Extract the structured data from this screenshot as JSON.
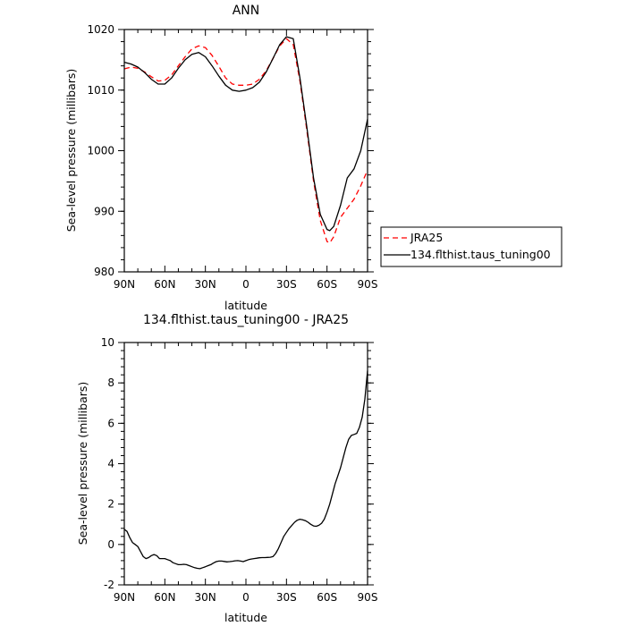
{
  "chart_data": [
    {
      "type": "line",
      "title": "ANN",
      "xlabel": "latitude",
      "ylabel": "Sea-level pressure (millibars)",
      "x_direction": "90N to 90S",
      "x_ticks": [
        "90N",
        "60N",
        "30N",
        "0",
        "30S",
        "60S",
        "90S"
      ],
      "ylim": [
        980,
        1020
      ],
      "y_ticks": [
        "980",
        "990",
        "1000",
        "1010",
        "1020"
      ],
      "legend_position": "right",
      "series": [
        {
          "name": "JRA25",
          "color": "#ff0000",
          "dash": "dashed",
          "x": [
            90,
            85,
            80,
            75,
            70,
            65,
            60,
            55,
            50,
            45,
            40,
            35,
            30,
            25,
            20,
            15,
            10,
            5,
            0,
            -5,
            -10,
            -15,
            -20,
            -25,
            -30,
            -35,
            -40,
            -45,
            -50,
            -55,
            -60,
            -62,
            -65,
            -70,
            -75,
            -80,
            -85,
            -90
          ],
          "values": [
            1013.5,
            1013.8,
            1013.6,
            1013.0,
            1012.2,
            1011.5,
            1011.6,
            1012.5,
            1014.0,
            1015.5,
            1016.8,
            1017.3,
            1017.0,
            1015.7,
            1013.9,
            1012.0,
            1011.0,
            1010.8,
            1010.8,
            1011.0,
            1011.8,
            1013.2,
            1015.2,
            1017.3,
            1018.5,
            1017.5,
            1011.5,
            1003.5,
            995.0,
            988.5,
            985.0,
            984.8,
            985.8,
            989.0,
            990.5,
            992.0,
            994.2,
            996.8
          ]
        },
        {
          "name": "134.flthist.taus_tuning00",
          "color": "#000000",
          "dash": "solid",
          "x": [
            90,
            85,
            80,
            75,
            70,
            65,
            60,
            55,
            50,
            45,
            40,
            35,
            30,
            25,
            20,
            15,
            10,
            5,
            0,
            -5,
            -10,
            -15,
            -20,
            -25,
            -30,
            -35,
            -40,
            -45,
            -50,
            -55,
            -60,
            -62,
            -65,
            -70,
            -75,
            -80,
            -85,
            -90
          ],
          "values": [
            1014.6,
            1014.3,
            1013.8,
            1012.9,
            1011.8,
            1011.0,
            1011.0,
            1012.0,
            1013.6,
            1015.0,
            1015.9,
            1016.2,
            1015.5,
            1014.0,
            1012.3,
            1010.8,
            1010.0,
            1009.8,
            1010.0,
            1010.4,
            1011.3,
            1013.0,
            1015.2,
            1017.5,
            1018.8,
            1018.5,
            1012.0,
            1004.0,
            995.5,
            989.5,
            987.0,
            986.8,
            987.5,
            991.0,
            995.5,
            997.0,
            1000.0,
            1005.2
          ]
        }
      ]
    },
    {
      "type": "line",
      "title": "134.flthist.taus_tuning00 - JRA25",
      "xlabel": "latitude",
      "ylabel": "Sea-level pressure (millibars)",
      "x_direction": "90N to 90S",
      "x_ticks": [
        "90N",
        "60N",
        "30N",
        "0",
        "30S",
        "60S",
        "90S"
      ],
      "ylim": [
        -2,
        10
      ],
      "y_ticks": [
        "-2",
        "0",
        "2",
        "4",
        "6",
        "8",
        "10"
      ],
      "series": [
        {
          "color": "#000000",
          "dash": "solid",
          "x": [
            90,
            88,
            86,
            84,
            82,
            80,
            78,
            76,
            74,
            72,
            70,
            68,
            66,
            64,
            62,
            60,
            58,
            56,
            54,
            52,
            50,
            48,
            46,
            44,
            42,
            40,
            38,
            36,
            34,
            32,
            30,
            28,
            26,
            24,
            22,
            20,
            18,
            16,
            14,
            12,
            10,
            8,
            6,
            4,
            2,
            0,
            -2,
            -4,
            -6,
            -8,
            -10,
            -12,
            -14,
            -16,
            -18,
            -20,
            -22,
            -24,
            -26,
            -28,
            -30,
            -32,
            -34,
            -36,
            -38,
            -40,
            -42,
            -44,
            -46,
            -48,
            -50,
            -52,
            -54,
            -56,
            -58,
            -60,
            -62,
            -64,
            -66,
            -68,
            -70,
            -72,
            -74,
            -76,
            -78,
            -80,
            -82,
            -84,
            -86,
            -88,
            -90
          ],
          "values": [
            0.75,
            0.65,
            0.35,
            0.1,
            0.0,
            -0.1,
            -0.35,
            -0.6,
            -0.7,
            -0.65,
            -0.55,
            -0.5,
            -0.55,
            -0.7,
            -0.7,
            -0.7,
            -0.75,
            -0.8,
            -0.9,
            -0.95,
            -1.0,
            -1.0,
            -0.98,
            -1.0,
            -1.05,
            -1.1,
            -1.15,
            -1.18,
            -1.2,
            -1.15,
            -1.1,
            -1.05,
            -1.0,
            -0.92,
            -0.85,
            -0.82,
            -0.82,
            -0.84,
            -0.86,
            -0.85,
            -0.83,
            -0.81,
            -0.8,
            -0.82,
            -0.85,
            -0.8,
            -0.75,
            -0.72,
            -0.7,
            -0.68,
            -0.66,
            -0.65,
            -0.65,
            -0.64,
            -0.63,
            -0.6,
            -0.45,
            -0.2,
            0.1,
            0.4,
            0.6,
            0.8,
            0.95,
            1.1,
            1.2,
            1.25,
            1.22,
            1.18,
            1.1,
            1.0,
            0.92,
            0.9,
            0.95,
            1.05,
            1.25,
            1.6,
            2.0,
            2.5,
            3.0,
            3.4,
            3.8,
            4.3,
            4.8,
            5.2,
            5.4,
            5.45,
            5.5,
            5.8,
            6.3,
            7.2,
            8.6
          ]
        }
      ]
    }
  ]
}
